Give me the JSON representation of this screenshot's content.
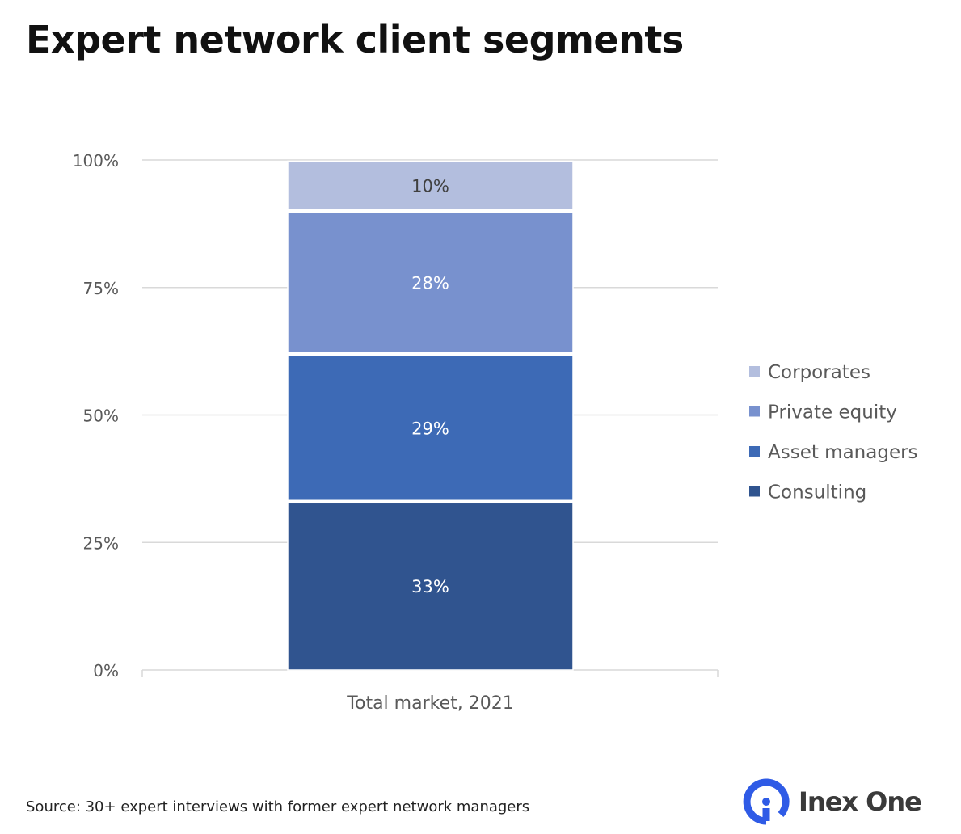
{
  "title": "Expert network client segments",
  "source": "Source: 30+ expert interviews with former expert network managers",
  "logo": {
    "text": "Inex One",
    "color": "#2f5be6"
  },
  "chart_data": {
    "type": "bar",
    "stacked": true,
    "categories": [
      "Total market, 2021"
    ],
    "series": [
      {
        "name": "Consulting",
        "values": [
          33
        ],
        "label": "33%",
        "color": "#30548f"
      },
      {
        "name": "Asset managers",
        "values": [
          29
        ],
        "label": "29%",
        "color": "#3d6ab6"
      },
      {
        "name": "Private equity",
        "values": [
          28
        ],
        "label": "28%",
        "color": "#7891ce"
      },
      {
        "name": "Corporates",
        "values": [
          10
        ],
        "label": "10%",
        "color": "#b3bede"
      }
    ],
    "yticks": [
      "0%",
      "25%",
      "50%",
      "75%",
      "100%"
    ],
    "ylim": [
      0,
      100
    ],
    "grid": true,
    "legend": "right"
  }
}
